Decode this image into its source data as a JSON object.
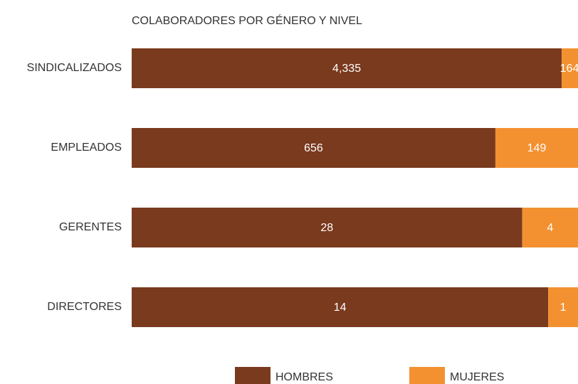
{
  "chart_data": {
    "type": "bar",
    "orientation": "horizontal",
    "stack": "percent",
    "title": "COLABORADORES POR GÉNERO Y NIVEL",
    "categories": [
      "SINDICALIZADOS",
      "EMPLEADOS",
      "GERENTES",
      "DIRECTORES"
    ],
    "series": [
      {
        "name": "HOMBRES",
        "color": "#7a3a1e",
        "values": [
          4335,
          656,
          28,
          14
        ],
        "value_labels": [
          "4,335",
          "656",
          "28",
          "14"
        ]
      },
      {
        "name": "MUJERES",
        "color": "#f39130",
        "values": [
          164,
          149,
          4,
          1
        ]
      }
    ]
  }
}
